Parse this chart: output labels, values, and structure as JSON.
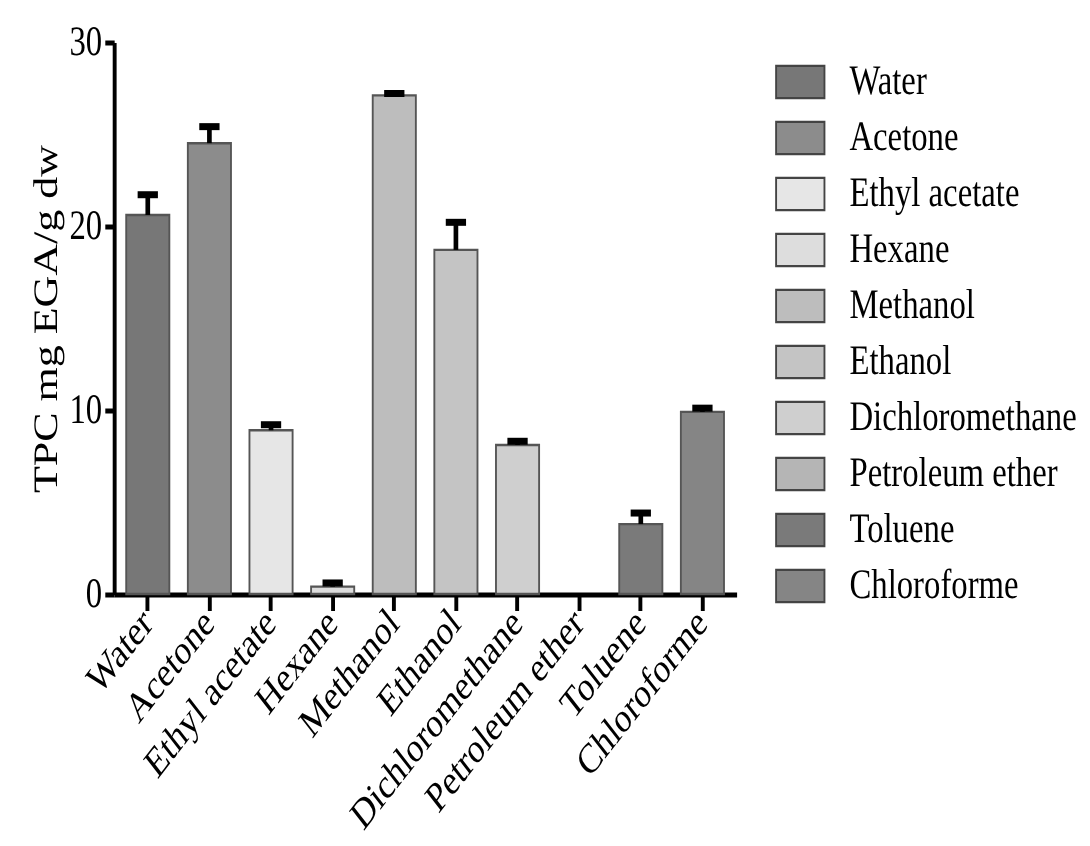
{
  "chart_data": {
    "type": "bar",
    "ylabel": "TPC mg EGA/g dw",
    "stacked": true,
    "categories": [
      "Water",
      "Acetone",
      "Ethyl acetate",
      "Hexane",
      "Methanol",
      "Ethanol",
      "Dichloromethane",
      "Petroleum ether",
      "Toluene",
      "Chloroforme"
    ],
    "series": [
      {
        "name": "Water",
        "color": "#777777",
        "values": [
          20.6,
          null,
          null,
          null,
          null,
          null,
          null,
          null,
          null,
          null
        ],
        "errors": [
          1.1,
          null,
          null,
          null,
          null,
          null,
          null,
          null,
          null,
          null
        ]
      },
      {
        "name": "Acetone",
        "color": "#8c8c8c",
        "values": [
          null,
          24.5,
          null,
          null,
          null,
          null,
          null,
          null,
          null,
          null
        ],
        "errors": [
          null,
          0.9,
          null,
          null,
          null,
          null,
          null,
          null,
          null,
          null
        ]
      },
      {
        "name": "Ethyl acetate",
        "color": "#e6e6e6",
        "values": [
          null,
          null,
          8.9,
          null,
          null,
          null,
          null,
          null,
          null,
          null
        ],
        "errors": [
          null,
          null,
          0.3,
          null,
          null,
          null,
          null,
          null,
          null,
          null
        ]
      },
      {
        "name": "Hexane",
        "color": "#dddddd",
        "values": [
          null,
          null,
          null,
          0.4,
          null,
          null,
          null,
          null,
          null,
          null
        ],
        "errors": [
          null,
          null,
          null,
          0.2,
          null,
          null,
          null,
          null,
          null,
          null
        ]
      },
      {
        "name": "Methanol",
        "color": "#bdbdbd",
        "values": [
          null,
          null,
          null,
          null,
          27.1,
          null,
          null,
          null,
          null,
          null
        ],
        "errors": [
          null,
          null,
          null,
          null,
          0.1,
          null,
          null,
          null,
          null,
          null
        ]
      },
      {
        "name": "Ethanol",
        "color": "#c4c4c4",
        "values": [
          null,
          null,
          null,
          null,
          null,
          18.7,
          null,
          null,
          null,
          null
        ],
        "errors": [
          null,
          null,
          null,
          null,
          null,
          1.5,
          null,
          null,
          null,
          null
        ]
      },
      {
        "name": "Dichloromethane",
        "color": "#cfcfcf",
        "values": [
          null,
          null,
          null,
          null,
          null,
          null,
          8.1,
          null,
          null,
          null
        ],
        "errors": [
          null,
          null,
          null,
          null,
          null,
          null,
          0.2,
          null,
          null,
          null
        ]
      },
      {
        "name": "Petroleum ether",
        "color": "#b5b5b5",
        "values": [
          null,
          null,
          null,
          null,
          null,
          null,
          null,
          null,
          null,
          null
        ]
      },
      {
        "name": "Toluene",
        "color": "#7a7a7a",
        "values": [
          null,
          null,
          null,
          null,
          null,
          null,
          null,
          null,
          3.8,
          null
        ],
        "errors": [
          null,
          null,
          null,
          null,
          null,
          null,
          null,
          null,
          0.6,
          null
        ]
      },
      {
        "name": "Chloroforme",
        "color": "#858585",
        "values": [
          null,
          null,
          null,
          null,
          null,
          null,
          null,
          null,
          null,
          9.9
        ],
        "errors": [
          null,
          null,
          null,
          null,
          null,
          null,
          null,
          null,
          null,
          0.2
        ]
      }
    ],
    "ylim": [
      0,
      30
    ],
    "yticks": [
      0,
      10,
      20,
      30
    ],
    "legend": "right"
  }
}
